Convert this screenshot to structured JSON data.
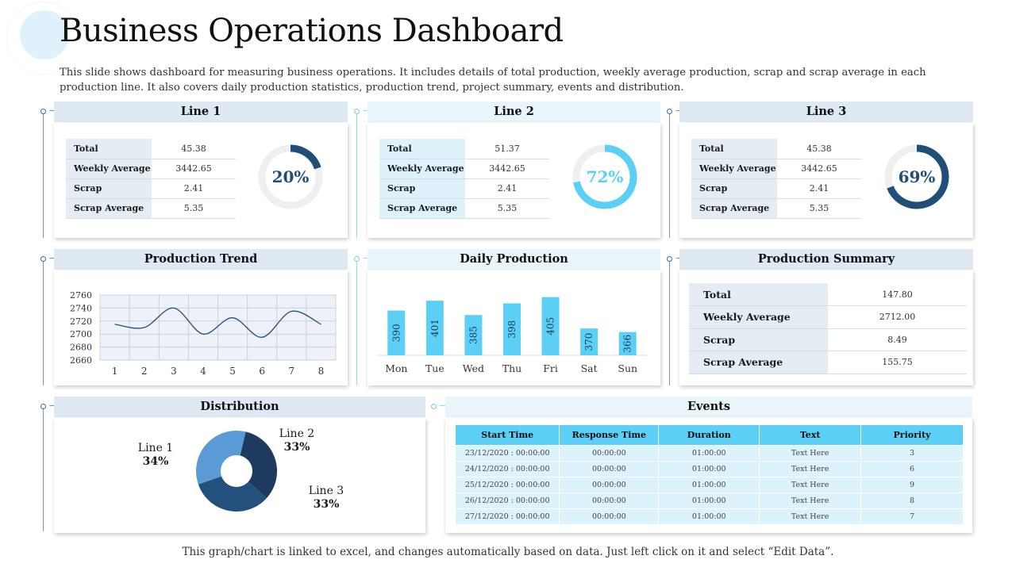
{
  "page": {
    "title": "Business Operations Dashboard",
    "subtitle": "This slide shows dashboard for measuring business operations. It includes details of total production, weekly average production, scrap and scrap average in each production line. It also covers daily production statistics, production trend, project summary, events and distribution.",
    "footer": "This graph/chart is linked to excel, and changes automatically based on data. Just left click on it and select “Edit Data”."
  },
  "lines": [
    {
      "title": "Line 1",
      "rows": [
        {
          "label": "Total",
          "value": "45.38"
        },
        {
          "label": "Weekly Average",
          "value": "3442.65"
        },
        {
          "label": "Scrap",
          "value": "2.41"
        },
        {
          "label": "Scrap Average",
          "value": "5.35"
        }
      ],
      "percent_label": "20%",
      "percent": 20,
      "color": "#1f4e79"
    },
    {
      "title": "Line 2",
      "rows": [
        {
          "label": "Total",
          "value": "51.37"
        },
        {
          "label": "Weekly Average",
          "value": "3442.65"
        },
        {
          "label": "Scrap",
          "value": "2.41"
        },
        {
          "label": "Scrap Average",
          "value": "5.35"
        }
      ],
      "percent_label": "72%",
      "percent": 72,
      "color": "#5bcff5"
    },
    {
      "title": "Line 3",
      "rows": [
        {
          "label": "Total",
          "value": "45.38"
        },
        {
          "label": "Weekly Average",
          "value": "3442.65"
        },
        {
          "label": "Scrap",
          "value": "2.41"
        },
        {
          "label": "Scrap Average",
          "value": "5.35"
        }
      ],
      "percent_label": "69%",
      "percent": 69,
      "color": "#1f4e79"
    }
  ],
  "production_trend": {
    "title": "Production Trend"
  },
  "daily_production": {
    "title": "Daily Production"
  },
  "production_summary": {
    "title": "Production Summary",
    "rows": [
      {
        "label": "Total",
        "value": "147.80"
      },
      {
        "label": "Weekly Average",
        "value": "2712.00"
      },
      {
        "label": "Scrap",
        "value": "8.49"
      },
      {
        "label": "Scrap Average",
        "value": "155.75"
      }
    ]
  },
  "distribution": {
    "title": "Distribution",
    "slices": [
      {
        "name": "Line 1",
        "percent_label": "34%"
      },
      {
        "name": "Line 2",
        "percent_label": "33%"
      },
      {
        "name": "Line 3",
        "percent_label": "33%"
      }
    ]
  },
  "events": {
    "title": "Events",
    "columns": [
      "Start Time",
      "Response Time",
      "Duration",
      "Text",
      "Priority"
    ],
    "rows": [
      [
        "23/12/2020 : 00:00:00",
        "00:00:00",
        "01:00:00",
        "Text Here",
        "3"
      ],
      [
        "24/12/2020 : 00:00:00",
        "00:00:00",
        "01:00:00",
        "Text Here",
        "6"
      ],
      [
        "25/12/2020 : 00:00:00",
        "00:00:00",
        "01:00:00",
        "Text Here",
        "9"
      ],
      [
        "26/12/2020 : 00:00:00",
        "00:00:00",
        "01:00:00",
        "Text Here",
        "8"
      ],
      [
        "27/12/2020 : 00:00:00",
        "00:00:00",
        "01:00:00",
        "Text Here",
        "7"
      ]
    ]
  },
  "colors": {
    "dark_blue": "#1f4e79",
    "light_blue": "#5bcff5",
    "mid_blue": "#5b9bd5",
    "navy": "#1e3a5f",
    "header_bg": "#dfe9f4"
  },
  "chart_data": [
    {
      "type": "line",
      "title": "Production Trend",
      "x": [
        1,
        2,
        3,
        4,
        5,
        6,
        7,
        8
      ],
      "y": [
        2715,
        2710,
        2740,
        2700,
        2725,
        2695,
        2735,
        2715
      ],
      "ylim": [
        2660,
        2760
      ],
      "yticks": [
        2660,
        2680,
        2700,
        2720,
        2740,
        2760
      ],
      "xlabel": "",
      "ylabel": "",
      "grid": true,
      "color": "#1f4e79"
    },
    {
      "type": "bar",
      "title": "Daily Production",
      "categories": [
        "Mon",
        "Tue",
        "Wed",
        "Thu",
        "Fri",
        "Sat",
        "Sun"
      ],
      "values": [
        390,
        401,
        385,
        398,
        405,
        370,
        366
      ],
      "ylim": [
        340,
        410
      ],
      "color": "#5bcff5",
      "data_labels": true
    },
    {
      "type": "pie",
      "title": "Distribution",
      "categories": [
        "Line 1",
        "Line 2",
        "Line 3"
      ],
      "values": [
        34,
        33,
        33
      ],
      "colors": [
        "#5b9bd5",
        "#1e3a5f",
        "#24507e"
      ],
      "donut": true
    }
  ]
}
